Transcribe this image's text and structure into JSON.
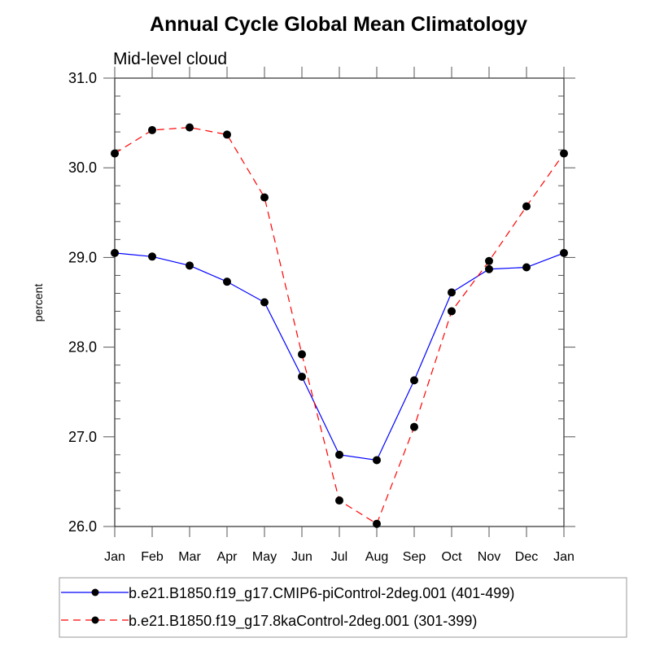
{
  "chart_data": {
    "type": "line",
    "title": "Annual Cycle Global Mean Climatology",
    "subtitle": "Mid-level cloud",
    "xlabel": "",
    "ylabel": "percent",
    "categories": [
      "Jan",
      "Feb",
      "Mar",
      "Apr",
      "May",
      "Jun",
      "Jul",
      "Aug",
      "Sep",
      "Oct",
      "Nov",
      "Dec",
      "Jan"
    ],
    "ylim": [
      26.0,
      31.0
    ],
    "yticks": [
      26.0,
      27.0,
      28.0,
      29.0,
      30.0,
      31.0
    ],
    "ytick_labels": [
      "26.0",
      "27.0",
      "28.0",
      "29.0",
      "30.0",
      "31.0"
    ],
    "yminor_step": 0.2,
    "grid": false,
    "legend_position": "bottom",
    "series": [
      {
        "name": "b.e21.B1850.f19_g17.CMIP6-piControl-2deg.001 (401-499)",
        "color": "#0000ff",
        "line_style": "solid",
        "marker": "filled-circle",
        "marker_color": "#000000",
        "values": [
          29.05,
          29.01,
          28.91,
          28.73,
          28.5,
          27.67,
          26.8,
          26.74,
          27.63,
          28.61,
          28.87,
          28.89,
          29.05
        ]
      },
      {
        "name": "b.e21.B1850.f19_g17.8kaControl-2deg.001 (301-399)",
        "color": "#ff0000",
        "line_style": "dashed",
        "marker": "filled-circle",
        "marker_color": "#000000",
        "values": [
          30.16,
          30.42,
          30.45,
          30.37,
          29.67,
          27.92,
          26.29,
          26.03,
          27.11,
          28.4,
          28.96,
          29.57,
          30.16
        ]
      }
    ]
  }
}
